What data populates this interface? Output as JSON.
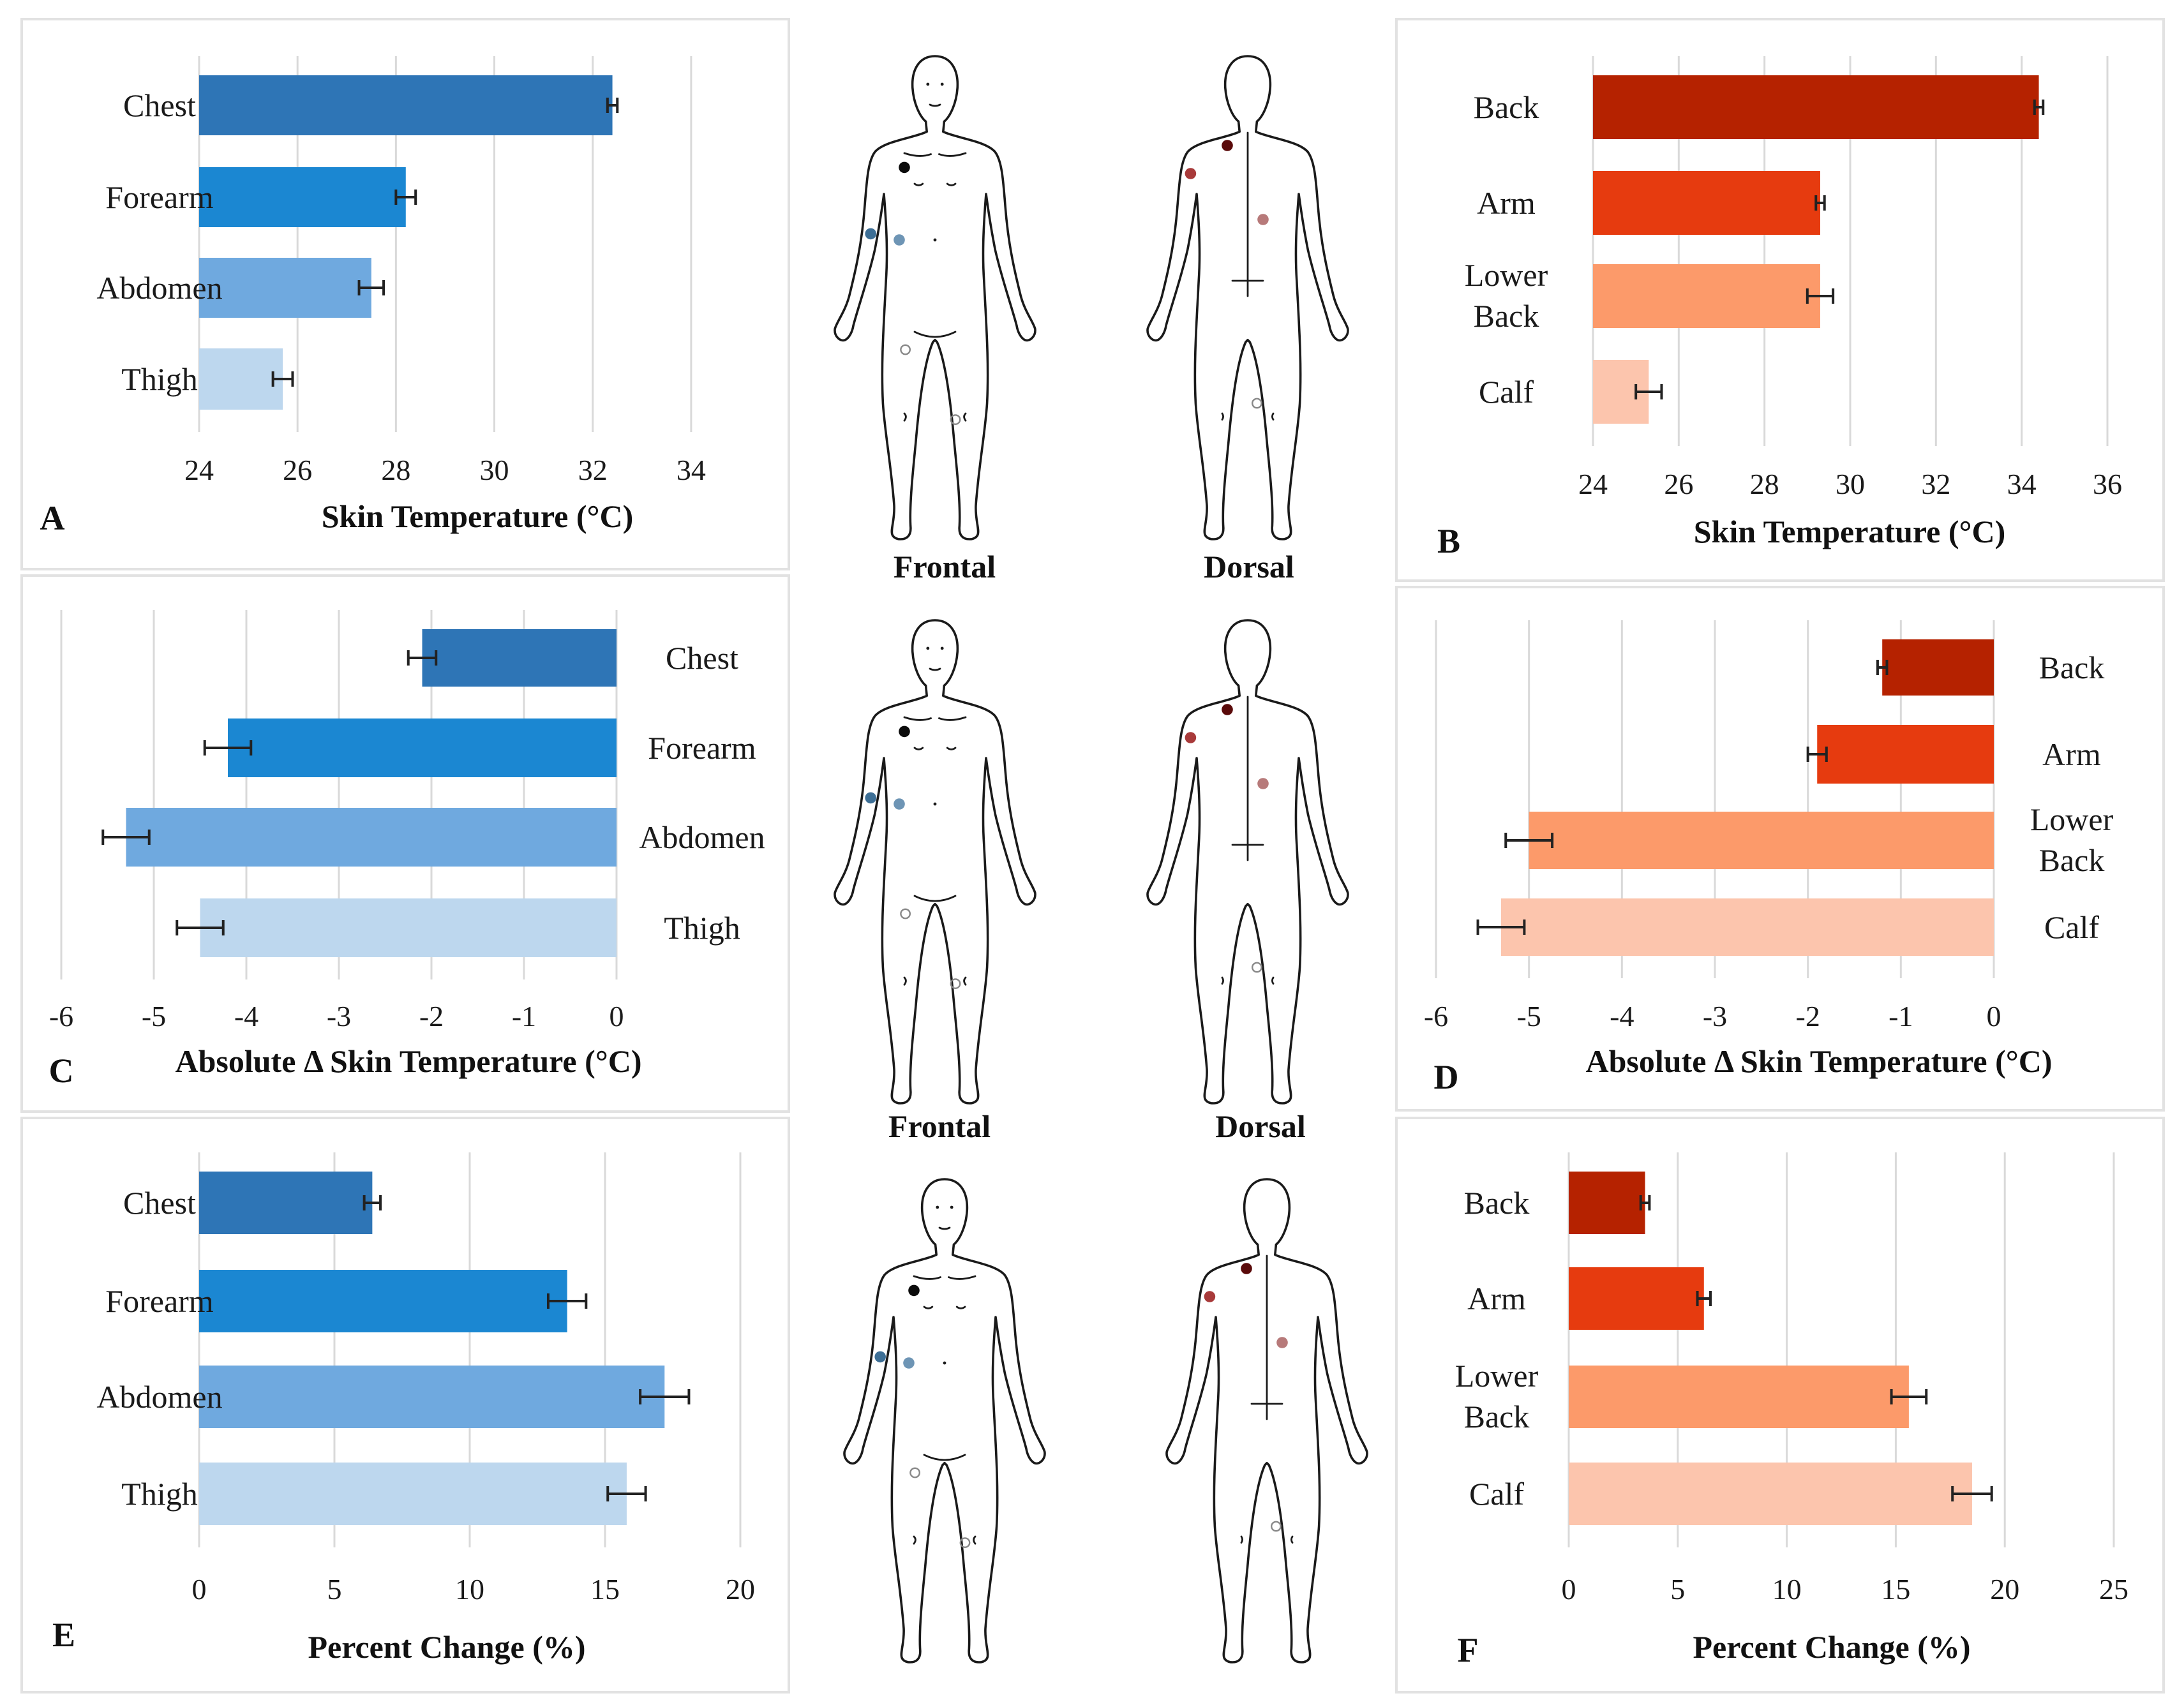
{
  "chart_data": [
    {
      "id": "A",
      "type": "bar",
      "orientation": "horizontal",
      "panel_label": "A",
      "categories": [
        "Chest",
        "Forearm",
        "Abdomen",
        "Thigh"
      ],
      "values": [
        32.4,
        28.2,
        27.5,
        25.7
      ],
      "errors": [
        0.1,
        0.2,
        0.25,
        0.2
      ],
      "xlabel": "Skin Temperature (°C)",
      "xlim": [
        24,
        35
      ],
      "xticks": [
        24,
        26,
        28,
        30,
        32,
        34
      ],
      "tick_labels": [
        "24",
        "26",
        "28",
        "30",
        "32",
        "34"
      ],
      "grid": true,
      "label_side": "left",
      "colors": [
        "#2e75b6",
        "#1b87d2",
        "#6fa9df",
        "#bdd7ee"
      ]
    },
    {
      "id": "B",
      "type": "bar",
      "orientation": "horizontal",
      "panel_label": "B",
      "categories": [
        "Back",
        "Arm",
        "Lower\nBack",
        "Calf"
      ],
      "values": [
        34.4,
        29.3,
        29.3,
        25.3
      ],
      "errors": [
        0.1,
        0.1,
        0.3,
        0.3
      ],
      "xlabel": "Skin Temperature (°C)",
      "xlim": [
        24,
        36
      ],
      "xticks": [
        24,
        26,
        28,
        30,
        32,
        34,
        36
      ],
      "tick_labels": [
        "24",
        "26",
        "28",
        "30",
        "32",
        "34",
        "36"
      ],
      "grid": true,
      "label_side": "left",
      "colors": [
        "#b52200",
        "#e63b0f",
        "#fc9a6a",
        "#fcc5ad"
      ]
    },
    {
      "id": "C",
      "type": "bar",
      "orientation": "horizontal",
      "panel_label": "C",
      "categories": [
        "Chest",
        "Forearm",
        "Abdomen",
        "Thigh"
      ],
      "values": [
        -2.1,
        -4.2,
        -5.3,
        -4.5
      ],
      "errors": [
        0.15,
        0.25,
        0.25,
        0.25
      ],
      "xlabel": "Absolute Δ Skin Temperature (°C)",
      "xlim": [
        -6,
        0
      ],
      "xticks": [
        -6,
        -5,
        -4,
        -3,
        -2,
        -1,
        0
      ],
      "tick_labels": [
        "-6",
        "-5",
        "-4",
        "-3",
        "-2",
        "-1",
        "0"
      ],
      "grid": true,
      "label_side": "right",
      "colors": [
        "#2e75b6",
        "#1b87d2",
        "#6fa9df",
        "#bdd7ee"
      ]
    },
    {
      "id": "D",
      "type": "bar",
      "orientation": "horizontal",
      "panel_label": "D",
      "categories": [
        "Back",
        "Arm",
        "Lower\nBack",
        "Calf"
      ],
      "values": [
        -1.2,
        -1.9,
        -5.0,
        -5.3
      ],
      "errors": [
        0.05,
        0.1,
        0.25,
        0.25
      ],
      "xlabel": "Absolute Δ Skin Temperature (°C)",
      "xlim": [
        -6,
        0
      ],
      "xticks": [
        -6,
        -5,
        -4,
        -3,
        -2,
        -1,
        0
      ],
      "tick_labels": [
        "-6",
        "-5",
        "-4",
        "-3",
        "-2",
        "-1",
        "0"
      ],
      "grid": true,
      "label_side": "right",
      "colors": [
        "#b52200",
        "#e63b0f",
        "#fc9a6a",
        "#fcc5ad"
      ]
    },
    {
      "id": "E",
      "type": "bar",
      "orientation": "horizontal",
      "panel_label": "E",
      "categories": [
        "Chest",
        "Forearm",
        "Abdomen",
        "Thigh"
      ],
      "values": [
        6.4,
        13.6,
        17.2,
        15.8
      ],
      "errors": [
        0.3,
        0.7,
        0.9,
        0.7
      ],
      "xlabel": "Percent Change (%)",
      "xlim": [
        0,
        20
      ],
      "xticks": [
        0,
        5,
        10,
        15,
        20
      ],
      "tick_labels": [
        "0",
        "5",
        "10",
        "15",
        "20"
      ],
      "grid": true,
      "label_side": "left",
      "colors": [
        "#2e75b6",
        "#1b87d2",
        "#6fa9df",
        "#bdd7ee"
      ]
    },
    {
      "id": "F",
      "type": "bar",
      "orientation": "horizontal",
      "panel_label": "F",
      "categories": [
        "Back",
        "Arm",
        "Lower\nBack",
        "Calf"
      ],
      "values": [
        3.5,
        6.2,
        15.6,
        18.5
      ],
      "errors": [
        0.2,
        0.3,
        0.8,
        0.9
      ],
      "xlabel": "Percent Change (%)",
      "xlim": [
        0,
        25
      ],
      "xticks": [
        0,
        5,
        10,
        15,
        20,
        25
      ],
      "tick_labels": [
        "0",
        "5",
        "10",
        "15",
        "20",
        "25"
      ],
      "grid": true,
      "label_side": "left",
      "colors": [
        "#b52200",
        "#e63b0f",
        "#fc9a6a",
        "#fcc5ad"
      ]
    }
  ],
  "body_views": {
    "frontal_label": "Frontal",
    "dorsal_label": "Dorsal",
    "frontal_point_colors": [
      "#0b0b0b",
      "#3d6f96",
      "#6e95b5"
    ],
    "dorsal_point_colors": [
      "#5a0a0a",
      "#a83a3a",
      "#b77a7a"
    ]
  }
}
